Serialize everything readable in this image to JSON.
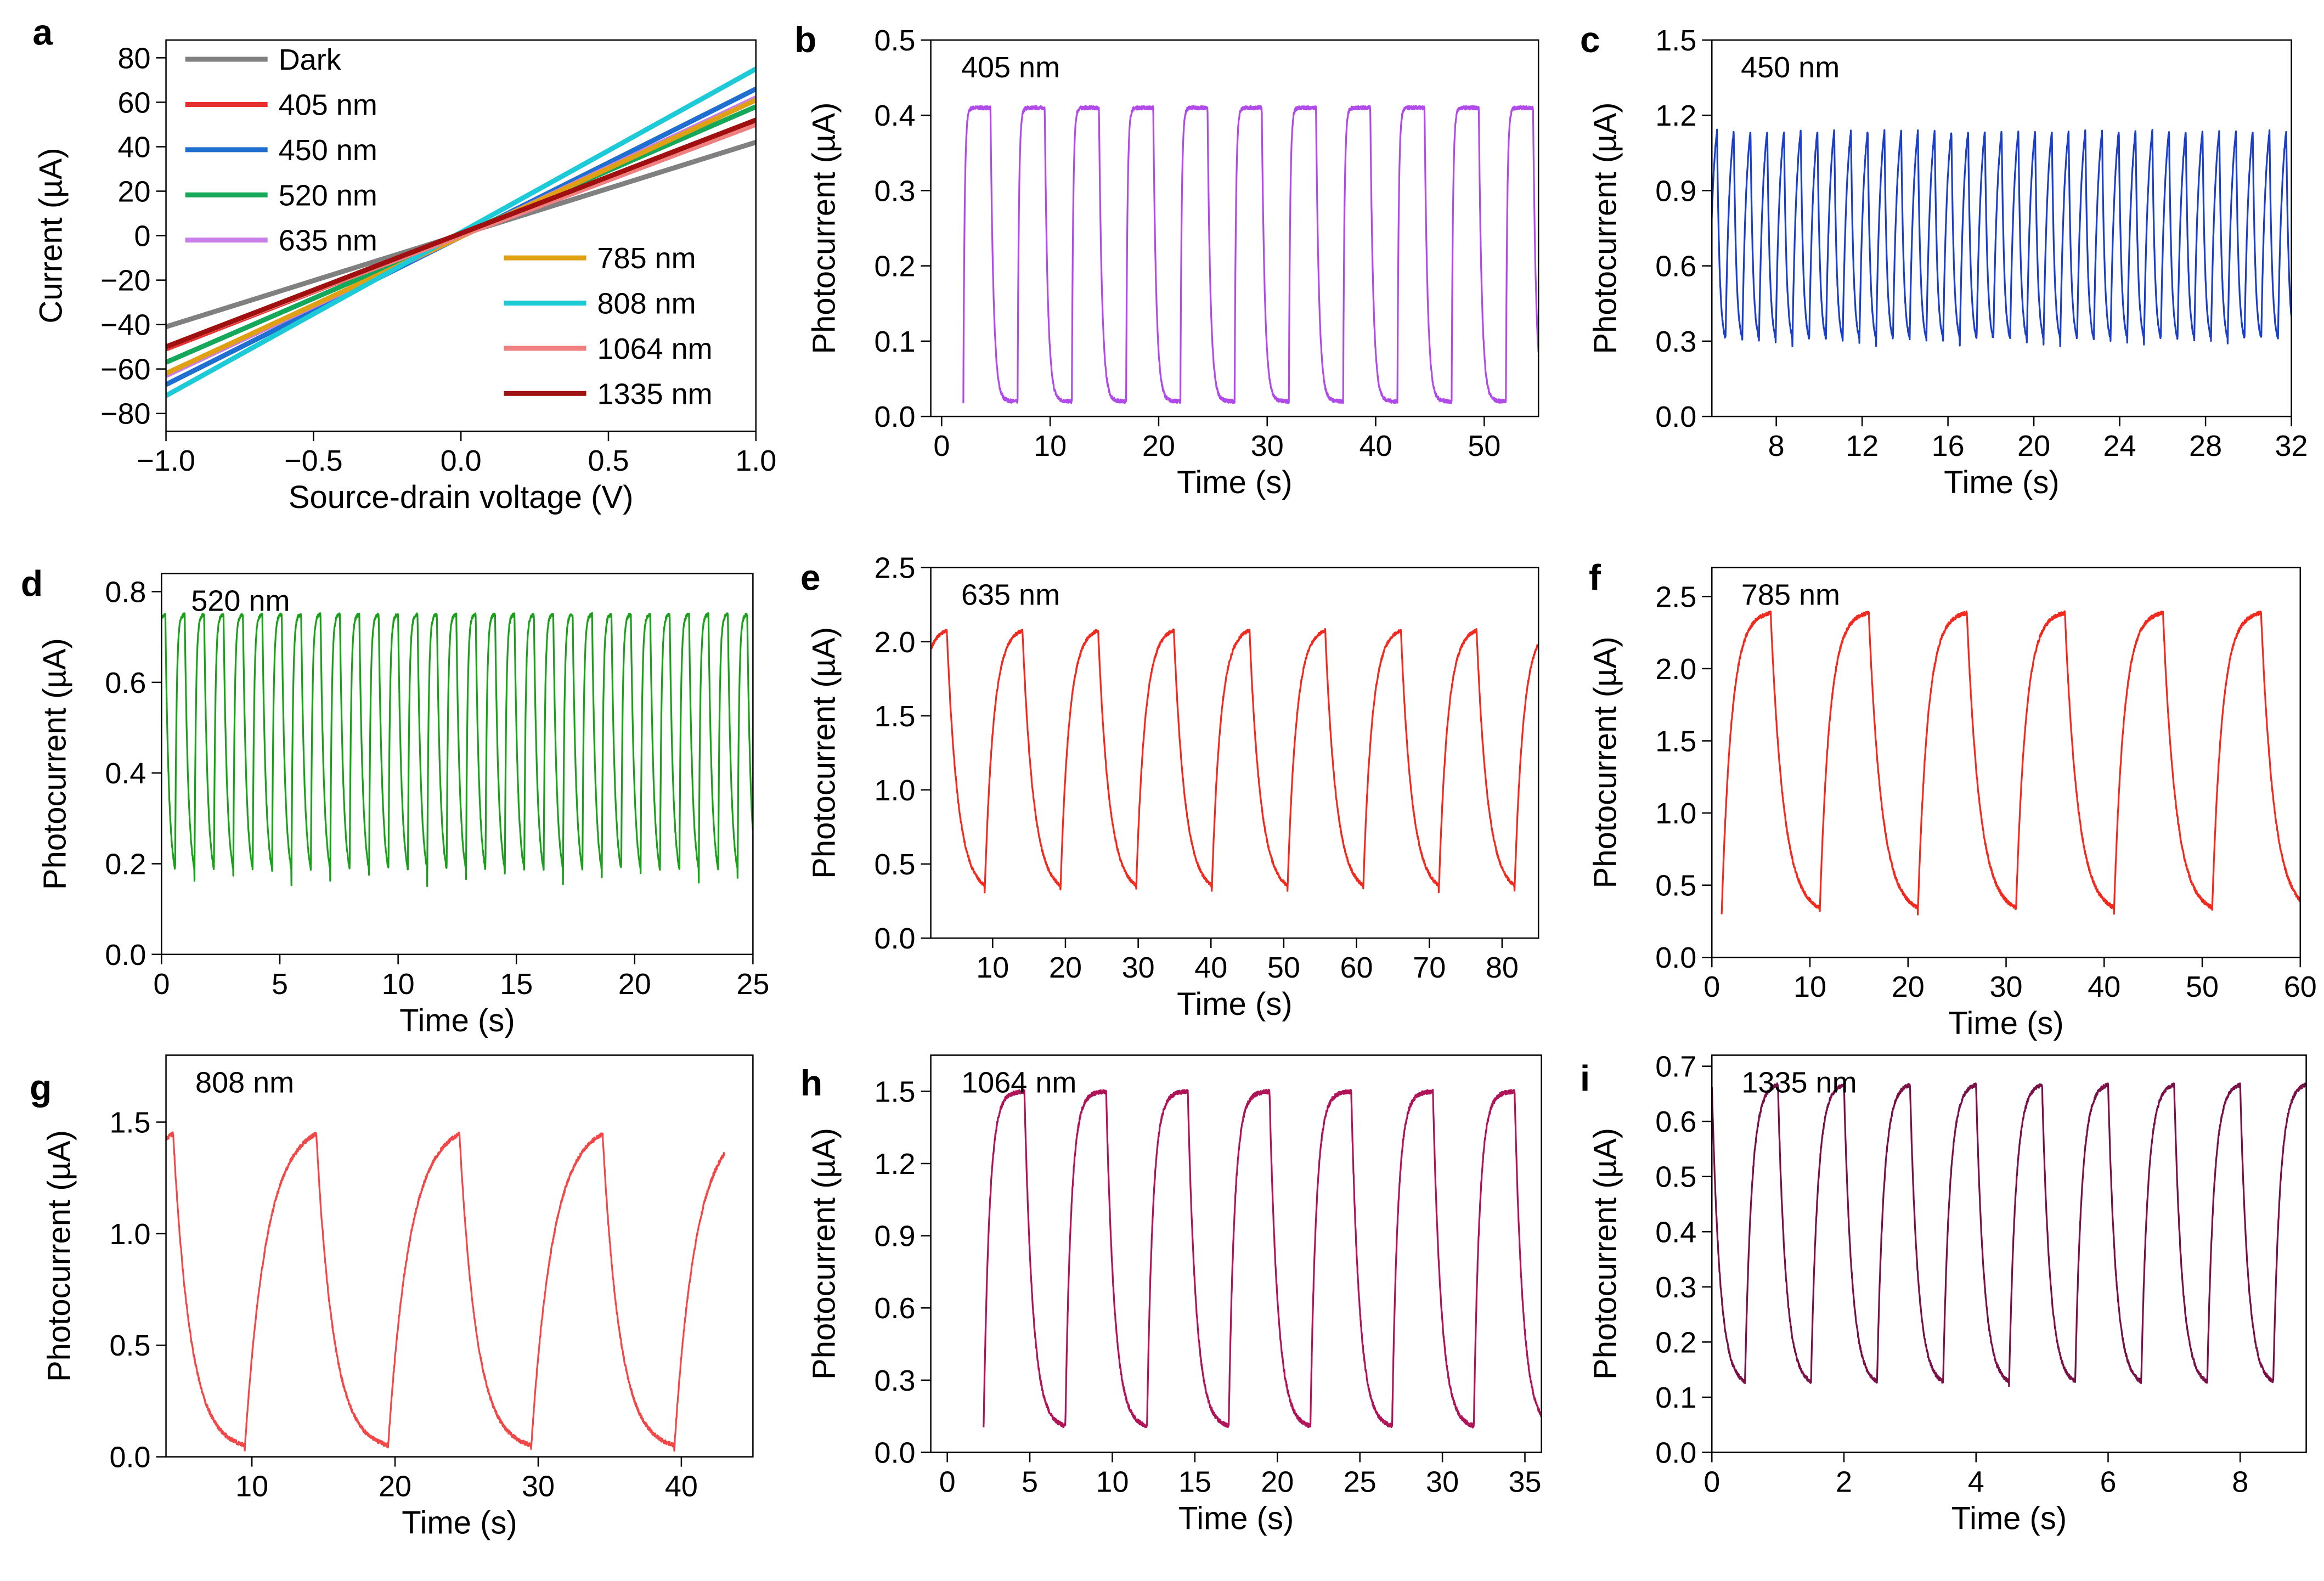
{
  "chart_data": [
    {
      "panel": "a",
      "type": "line",
      "xlabel": "Source-drain voltage (V)",
      "ylabel": "Current (µA)",
      "xlim": [
        -1.0,
        1.0
      ],
      "ylim": [
        -88,
        88
      ],
      "xticks": [
        -1.0,
        -0.5,
        0.0,
        0.5,
        1.0
      ],
      "xtick_labels": [
        "−1.0",
        "−0.5",
        "0.0",
        "0.5",
        "1.0"
      ],
      "yticks": [
        -80,
        -60,
        -40,
        -20,
        0,
        20,
        40,
        60,
        80
      ],
      "ytick_labels": [
        "−80",
        "−60",
        "−40",
        "−20",
        "0",
        "20",
        "40",
        "60",
        "80"
      ],
      "legend_position": "top-left and bottom-right",
      "series": [
        {
          "name": "Dark",
          "color": "#808080",
          "x": [
            -1.0,
            1.0
          ],
          "y": [
            -41,
            42
          ]
        },
        {
          "name": "405 nm",
          "color": "#e8302c",
          "x": [
            -1.0,
            1.0
          ],
          "y": [
            -51,
            52
          ]
        },
        {
          "name": "450 nm",
          "color": "#1f6fd1",
          "x": [
            -1.0,
            1.0
          ],
          "y": [
            -67,
            66
          ]
        },
        {
          "name": "520 nm",
          "color": "#16a85a",
          "x": [
            -1.0,
            1.0
          ],
          "y": [
            -57,
            58
          ]
        },
        {
          "name": "635 nm",
          "color": "#c77ee8",
          "x": [
            -1.0,
            1.0
          ],
          "y": [
            -63,
            62
          ]
        },
        {
          "name": "785 nm",
          "color": "#e0a014",
          "x": [
            -1.0,
            1.0
          ],
          "y": [
            -62,
            61
          ]
        },
        {
          "name": "808 nm",
          "color": "#1ccad8",
          "x": [
            -1.0,
            1.0
          ],
          "y": [
            -72,
            75
          ]
        },
        {
          "name": "1064 nm",
          "color": "#f08080",
          "x": [
            -1.0,
            1.0
          ],
          "y": [
            -50,
            50
          ]
        },
        {
          "name": "1335 nm",
          "color": "#a01010",
          "x": [
            -1.0,
            1.0
          ],
          "y": [
            -50,
            52
          ]
        }
      ]
    },
    {
      "panel": "b",
      "type": "line",
      "label": "405 nm",
      "color": "#b04ae8",
      "xlabel": "Time (s)",
      "ylabel": "Photocurrent (µA)",
      "xlim": [
        -1,
        55
      ],
      "ylim": [
        0,
        0.5
      ],
      "xticks": [
        0,
        10,
        20,
        30,
        40,
        50
      ],
      "xtick_labels": [
        "0",
        "10",
        "20",
        "30",
        "40",
        "50"
      ],
      "yticks": [
        0.0,
        0.1,
        0.2,
        0.3,
        0.4,
        0.5
      ],
      "ytick_labels": [
        "0.0",
        "0.1",
        "0.2",
        "0.3",
        "0.4",
        "0.5"
      ],
      "trace": {
        "t0": 2,
        "t_end": 55,
        "period": 5,
        "duty": 0.5,
        "low": 0.02,
        "high": 0.41,
        "tau_rise": 0.12,
        "tau_fall": 0.28,
        "shape": "square"
      }
    },
    {
      "panel": "c",
      "type": "line",
      "label": "450 nm",
      "color": "#1c3fc8",
      "xlabel": "Time (s)",
      "ylabel": "Photocurrent (µA)",
      "xlim": [
        5,
        32
      ],
      "ylim": [
        0,
        1.5
      ],
      "xticks": [
        8,
        12,
        16,
        20,
        24,
        28,
        32
      ],
      "xtick_labels": [
        "8",
        "12",
        "16",
        "20",
        "24",
        "28",
        "32"
      ],
      "yticks": [
        0.0,
        0.3,
        0.6,
        0.9,
        1.2,
        1.5
      ],
      "ytick_labels": [
        "0.0",
        "0.3",
        "0.6",
        "0.9",
        "1.2",
        "1.5"
      ],
      "trace": {
        "t0": 4.85,
        "t_end": 32,
        "period": 0.78,
        "duty": 0.5,
        "low": 0.28,
        "high": 1.28,
        "tau_rise": 0.2,
        "tau_fall": 0.12,
        "shape": "sawtooth"
      }
    },
    {
      "panel": "d",
      "type": "line",
      "label": "520 nm",
      "color": "#1aa01a",
      "xlabel": "Time (s)",
      "ylabel": "Photocurrent (µA)",
      "xlim": [
        0,
        25
      ],
      "ylim": [
        0,
        0.84
      ],
      "xticks": [
        0,
        5,
        10,
        15,
        20,
        25
      ],
      "xtick_labels": [
        "0",
        "5",
        "10",
        "15",
        "20",
        "25"
      ],
      "yticks": [
        0.0,
        0.2,
        0.4,
        0.6,
        0.8
      ],
      "ytick_labels": [
        "0.0",
        "0.2",
        "0.4",
        "0.6",
        "0.8"
      ],
      "trace": {
        "t0": -0.25,
        "t_end": 25,
        "period": 0.82,
        "duty": 0.5,
        "low": 0.15,
        "high": 0.75,
        "tau_rise": 0.06,
        "tau_fall": 0.15,
        "shape": "sawtooth"
      }
    },
    {
      "panel": "e",
      "type": "line",
      "label": "635 nm",
      "color": "#f02a1e",
      "xlabel": "Time (s)",
      "ylabel": "Photocurrent (µA)",
      "xlim": [
        1.5,
        85
      ],
      "ylim": [
        0,
        2.5
      ],
      "xticks": [
        10,
        20,
        30,
        40,
        50,
        60,
        70,
        80
      ],
      "xtick_labels": [
        "10",
        "20",
        "30",
        "40",
        "50",
        "60",
        "70",
        "80"
      ],
      "yticks": [
        0.0,
        0.5,
        1.0,
        1.5,
        2.0,
        2.5
      ],
      "ytick_labels": [
        "0.0",
        "0.5",
        "1.0",
        "1.5",
        "2.0",
        "2.5"
      ],
      "trace": {
        "t0": -1.5,
        "t_end": 85,
        "period": 10.4,
        "duty": 0.5,
        "low": 0.3,
        "high": 2.1,
        "tau_rise": 1.2,
        "tau_fall": 1.5,
        "shape": "square"
      }
    },
    {
      "panel": "f",
      "type": "line",
      "label": "785 nm",
      "color": "#f02a1e",
      "xlabel": "Time (s)",
      "ylabel": "Photocurrent (µA)",
      "xlim": [
        0,
        60
      ],
      "ylim": [
        0,
        2.7
      ],
      "xticks": [
        0,
        10,
        20,
        30,
        40,
        50,
        60
      ],
      "xtick_labels": [
        "0",
        "10",
        "20",
        "30",
        "40",
        "50",
        "60"
      ],
      "yticks": [
        0.0,
        0.5,
        1.0,
        1.5,
        2.0,
        2.5
      ],
      "ytick_labels": [
        "0.0",
        "0.5",
        "1.0",
        "1.5",
        "2.0",
        "2.5"
      ],
      "trace": {
        "t0": 1,
        "t_end": 60,
        "period": 10,
        "duty": 0.5,
        "low": 0.3,
        "high": 2.4,
        "tau_rise": 1.0,
        "tau_fall": 1.3,
        "shape": "square"
      }
    },
    {
      "panel": "g",
      "type": "line",
      "label": "808 nm",
      "color": "#f04848",
      "xlabel": "Time (s)",
      "ylabel": "Photocurrent (µA)",
      "xlim": [
        4,
        45
      ],
      "ylim": [
        0,
        1.8
      ],
      "xticks": [
        10,
        20,
        30,
        40
      ],
      "xtick_labels": [
        "10",
        "20",
        "30",
        "40"
      ],
      "yticks": [
        0.0,
        0.5,
        1.0,
        1.5
      ],
      "ytick_labels": [
        "0.0",
        "0.5",
        "1.0",
        "1.5"
      ],
      "trace": {
        "t0": -0.5,
        "t_end": 43,
        "period": 10,
        "duty": 0.5,
        "low": 0.03,
        "high": 1.5,
        "tau_rise": 1.5,
        "tau_fall": 1.2,
        "shape": "square"
      }
    },
    {
      "panel": "h",
      "type": "line",
      "label": "1064 nm",
      "color": "#b01458",
      "xlabel": "Time (s)",
      "ylabel": "Photocurrent (µA)",
      "xlim": [
        -1,
        36
      ],
      "ylim": [
        0,
        1.65
      ],
      "xticks": [
        0,
        5,
        10,
        15,
        20,
        25,
        30,
        35
      ],
      "xtick_labels": [
        "0",
        "5",
        "10",
        "15",
        "20",
        "25",
        "30",
        "35"
      ],
      "yticks": [
        0.0,
        0.3,
        0.6,
        0.9,
        1.2,
        1.5
      ],
      "ytick_labels": [
        "0.0",
        "0.3",
        "0.6",
        "0.9",
        "1.2",
        "1.5"
      ],
      "trace": {
        "t0": 2.2,
        "t_end": 36,
        "period": 4.95,
        "duty": 0.5,
        "low": 0.1,
        "high": 1.5,
        "tau_rise": 0.35,
        "tau_fall": 0.5,
        "shape": "square"
      }
    },
    {
      "panel": "i",
      "type": "line",
      "label": "1335 nm",
      "color": "#7a1048",
      "xlabel": "Time (s)",
      "ylabel": "Photocurrent (µA)",
      "xlim": [
        0,
        9
      ],
      "ylim": [
        0,
        0.72
      ],
      "xticks": [
        0,
        2,
        4,
        6,
        8
      ],
      "xtick_labels": [
        "0",
        "2",
        "4",
        "6",
        "8"
      ],
      "yticks": [
        0.0,
        0.1,
        0.2,
        0.3,
        0.4,
        0.5,
        0.6,
        0.7
      ],
      "ytick_labels": [
        "0.0",
        "0.1",
        "0.2",
        "0.3",
        "0.4",
        "0.5",
        "0.6",
        "0.7"
      ],
      "trace": {
        "t0": -0.5,
        "t_end": 9,
        "period": 1.0,
        "duty": 0.5,
        "low": 0.12,
        "high": 0.67,
        "tau_rise": 0.1,
        "tau_fall": 0.12,
        "shape": "square"
      }
    }
  ]
}
